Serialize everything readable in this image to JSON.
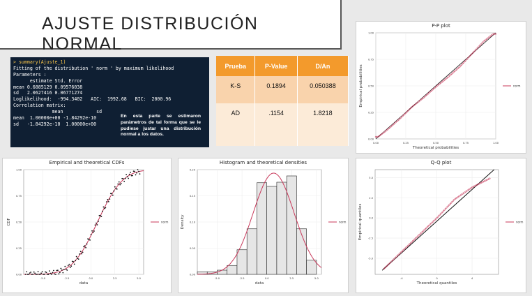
{
  "slide_title": "AJUSTE DISTRIBUCIÓN NORMAL",
  "console": {
    "lines": [
      "> summary(Ajuste_1)",
      "Fitting of the distribution ' norm ' by maximum likelihood",
      "Parameters :",
      "      estimate Std. Error",
      "mean 0.6885129 0.09576038",
      "sd   2.0627416 0.06771274",
      "Loglikelihood:  -994.3402   AIC:  1992.68   BIC:  2000.96",
      "Correlation matrix:",
      "              mean            sd",
      "mean  1.00000e+00 -1.84292e-10",
      "sd   -1.84292e-10  1.00000e+00"
    ],
    "note": "En esta parte se estimaron parámetros de tal forma que se le pudiese justar una distribución normal a los datos."
  },
  "stats_table": {
    "headers": [
      "Prueba",
      "P-Value",
      "D/An"
    ],
    "rows": [
      [
        "K-S",
        "0.1894",
        "0.050388"
      ],
      [
        "AD",
        ".1154",
        "1.8218"
      ]
    ]
  },
  "colors": {
    "fit_line": "#c8385a",
    "emp_points": "#111111",
    "hist_fill": "#e6e6e6",
    "table_header": "#f39a2c"
  },
  "charts": {
    "pp": {
      "title": "P-P plot",
      "xlabel": "Theoretical probabilities",
      "ylabel": "Empirical probabilities",
      "legend": "norm",
      "xticks": [
        "0.00",
        "0.25",
        "0.50",
        "0.75",
        "1.00"
      ],
      "yticks": [
        "0.00",
        "0.25",
        "0.50",
        "0.75",
        "1.00"
      ]
    },
    "cdf": {
      "title": "Empirical and theoretical CDFs",
      "xlabel": "data",
      "ylabel": "CDF",
      "legend": "norm",
      "xticks": [
        "-5.0",
        "-2.5",
        "0.0",
        "2.5",
        "5.0"
      ],
      "yticks": [
        "0.00",
        "0.25",
        "0.50",
        "0.75",
        "1.00"
      ]
    },
    "hist": {
      "title": "Histogram and theoretical densities",
      "xlabel": "data",
      "ylabel": "Density",
      "legend": "norm",
      "xticks": [
        "-5.0",
        "-2.5",
        "0.0",
        "2.5",
        "5.0"
      ],
      "yticks": [
        "0.00",
        "0.05",
        "0.10",
        "0.15",
        "0.20"
      ]
    },
    "qq": {
      "title": "Q-Q plot",
      "xlabel": "Theoretical quantiles",
      "ylabel": "Empirical quantiles",
      "legend": "norm",
      "xticks": [
        "-4",
        "0",
        "4"
      ],
      "yticks": [
        "-5.0",
        "-2.5",
        "0.0",
        "2.5",
        "5.0"
      ]
    }
  },
  "chart_data": [
    {
      "type": "scatter",
      "title": "P-P plot",
      "xlabel": "Theoretical probabilities",
      "ylabel": "Empirical probabilities",
      "xlim": [
        0,
        1
      ],
      "ylim": [
        0,
        1
      ],
      "series": [
        {
          "name": "norm",
          "x": [
            0.02,
            0.1,
            0.2,
            0.3,
            0.4,
            0.5,
            0.6,
            0.7,
            0.8,
            0.9,
            0.98
          ],
          "y": [
            0.02,
            0.09,
            0.19,
            0.3,
            0.39,
            0.49,
            0.58,
            0.68,
            0.8,
            0.92,
            0.99
          ]
        }
      ]
    },
    {
      "type": "line",
      "title": "Empirical and theoretical CDFs",
      "xlabel": "data",
      "ylabel": "CDF",
      "xlim": [
        -7,
        5.5
      ],
      "ylim": [
        0,
        1
      ],
      "series": [
        {
          "name": "norm",
          "x": [
            -7,
            -5,
            -2.5,
            0,
            2.5,
            5
          ],
          "y": [
            0,
            0.004,
            0.062,
            0.37,
            0.81,
            0.99
          ]
        }
      ]
    },
    {
      "type": "bar",
      "title": "Histogram and theoretical densities",
      "xlabel": "data",
      "ylabel": "Density",
      "xlim": [
        -7,
        5.5
      ],
      "ylim": [
        0,
        0.2
      ],
      "categories": [
        "-7",
        "-6",
        "-5",
        "-4",
        "-3",
        "-2",
        "-1",
        "0",
        "1",
        "2",
        "3",
        "4"
      ],
      "values": [
        0.005,
        0.005,
        0.008,
        0.017,
        0.047,
        0.087,
        0.175,
        0.168,
        0.176,
        0.188,
        0.087,
        0.027
      ],
      "series": [
        {
          "name": "norm",
          "x": [
            -5,
            -2.5,
            0.69,
            2.5,
            5
          ],
          "y": [
            0.0016,
            0.057,
            0.193,
            0.13,
            0.02
          ]
        }
      ]
    },
    {
      "type": "scatter",
      "title": "Q-Q plot",
      "xlabel": "Theoretical quantiles",
      "ylabel": "Empirical quantiles",
      "xlim": [
        -7,
        7
      ],
      "ylim": [
        -7,
        6
      ],
      "series": [
        {
          "name": "norm",
          "x": [
            -6,
            -4,
            -2,
            0,
            2,
            4,
            6
          ],
          "y": [
            -6.3,
            -4.2,
            -2.1,
            0,
            2.3,
            3.8,
            4.9
          ]
        }
      ]
    }
  ]
}
